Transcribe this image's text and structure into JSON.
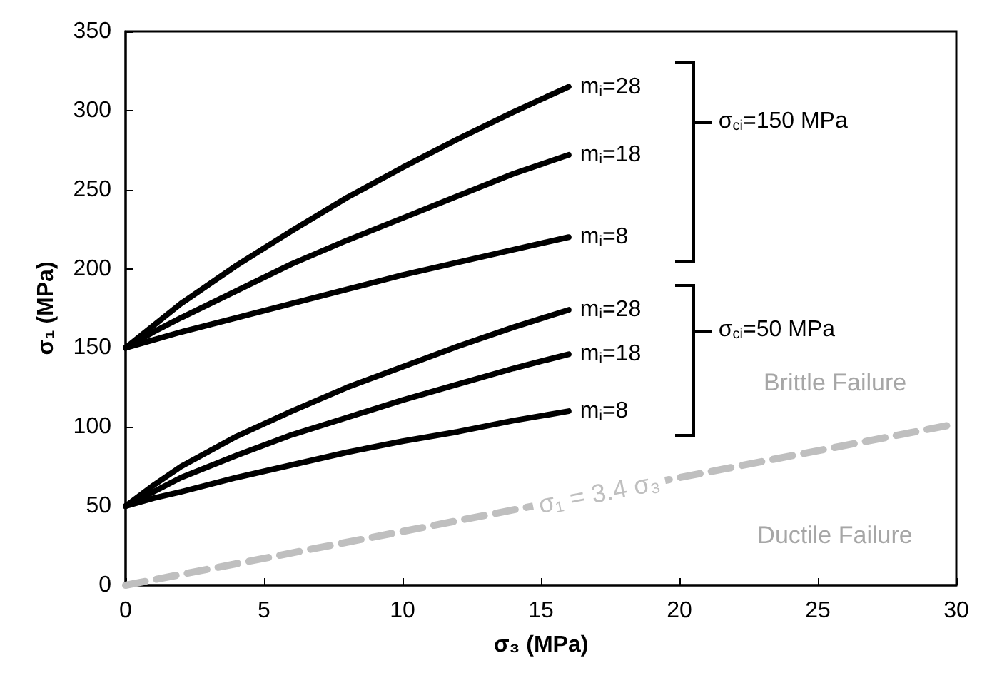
{
  "chart_data": {
    "type": "line",
    "xlabel": "σ₃ (MPa)",
    "ylabel": "σ₁ (MPa)",
    "xlim": [
      0,
      30
    ],
    "xticks": [
      0,
      5,
      10,
      15,
      20,
      25,
      30
    ],
    "ylim": [
      0,
      350
    ],
    "yticks": [
      0,
      50,
      100,
      150,
      200,
      250,
      300,
      350
    ],
    "grid": false,
    "legend": false,
    "marker": "none",
    "line_style": "solid",
    "series": [
      {
        "name": "m$_{i}$=28",
        "color": "#000000",
        "x": [
          0,
          1,
          2,
          4,
          6,
          8,
          10,
          12,
          14,
          16
        ],
        "values": [
          150,
          164,
          178,
          202,
          224,
          245,
          264,
          282,
          299,
          315
        ]
      },
      {
        "name": "m$_{i}$=18",
        "color": "#000000",
        "x": [
          0,
          1,
          2,
          4,
          6,
          8,
          10,
          12,
          14,
          16
        ],
        "values": [
          150,
          160,
          169,
          186,
          203,
          218,
          232,
          246,
          260,
          272
        ]
      },
      {
        "name": "m$_{i}$=8",
        "color": "#000000",
        "x": [
          0,
          1,
          2,
          4,
          6,
          8,
          10,
          12,
          14,
          16
        ],
        "values": [
          150,
          155,
          160,
          169,
          178,
          187,
          196,
          204,
          212,
          220
        ]
      },
      {
        "name": "m$_{i}$=28",
        "color": "#000000",
        "x": [
          0,
          1,
          2,
          4,
          6,
          8,
          10,
          12,
          14,
          16
        ],
        "values": [
          50,
          63,
          75,
          94,
          110,
          125,
          138,
          151,
          163,
          174
        ]
      },
      {
        "name": "m$_{i}$=18",
        "color": "#000000",
        "x": [
          0,
          1,
          2,
          4,
          6,
          8,
          10,
          12,
          14,
          16
        ],
        "values": [
          50,
          59,
          68,
          82,
          95,
          106,
          117,
          127,
          137,
          146
        ]
      },
      {
        "name": "m$_{i}$=8",
        "color": "#000000",
        "x": [
          0,
          1,
          2,
          4,
          6,
          8,
          10,
          12,
          14,
          16
        ],
        "values": [
          50,
          55,
          59,
          68,
          76,
          84,
          91,
          97,
          104,
          110
        ]
      },
      {
        "name": "σ₁ = 3.4 σ₃",
        "color": "#bfbfbf",
        "line_style": "dashed",
        "x": [
          0,
          30
        ],
        "values": [
          0,
          102
        ]
      }
    ],
    "annotations": [
      "σ$_{ci}$=150 MPa",
      "σ$_{ci}$=50 MPa",
      "Brittle Failure",
      "Ductile Failure"
    ]
  }
}
